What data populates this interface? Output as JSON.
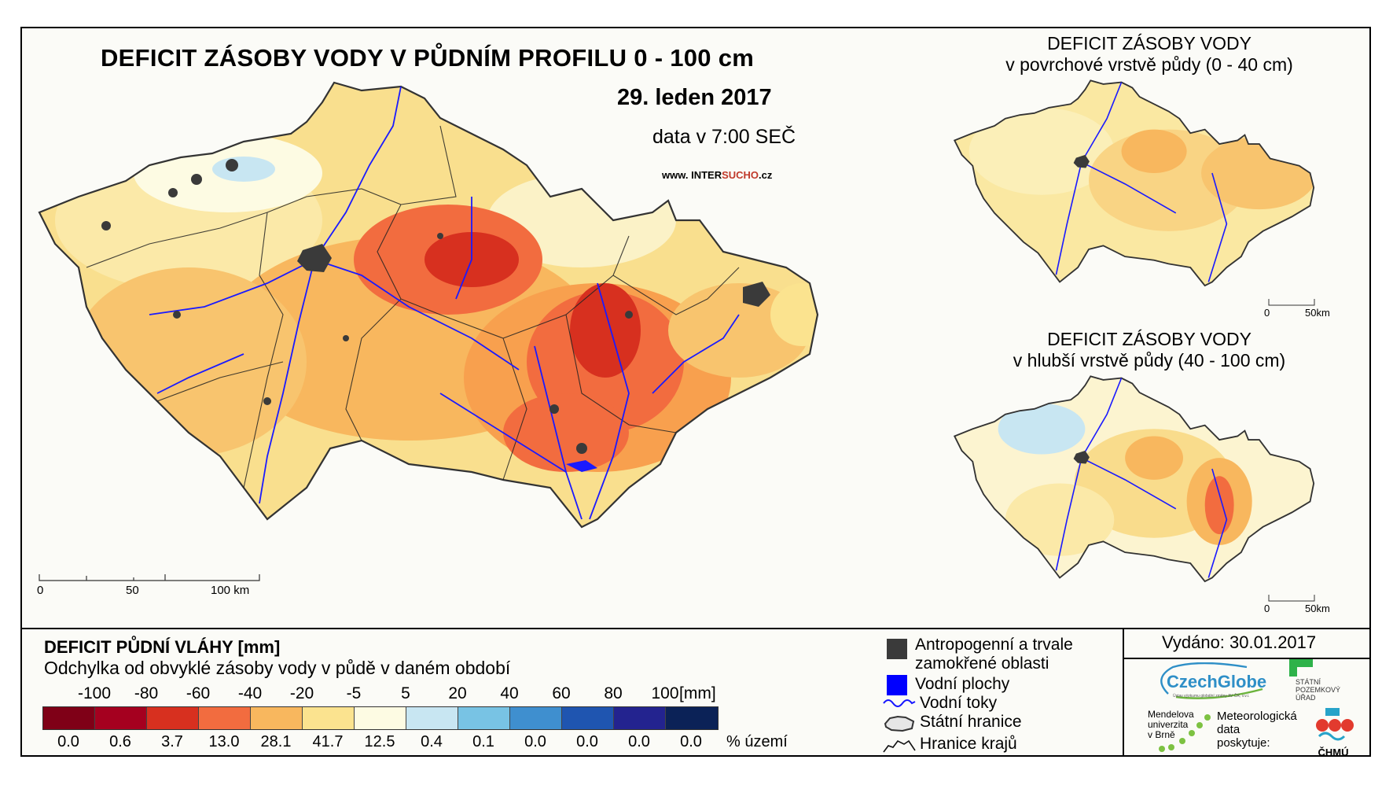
{
  "main_map": {
    "title": "DEFICIT ZÁSOBY VODY V PŮDNÍM PROFILU 0 - 100 cm",
    "date": "29. leden 2017",
    "time": "data v 7:00 SEČ",
    "website_prefix": "www. INTER",
    "website_highlight": "SUCHO",
    "website_suffix": ".cz",
    "scalebar": {
      "labels": [
        "0",
        "50",
        "100 km"
      ]
    }
  },
  "inset_top": {
    "title_line1": "DEFICIT ZÁSOBY VODY",
    "title_line2": "v povrchové vrstvě půdy (0 - 40 cm)",
    "scalebar": {
      "labels": [
        "0",
        "50km"
      ]
    }
  },
  "inset_bottom": {
    "title_line1": "DEFICIT ZÁSOBY VODY",
    "title_line2": "v hlubší vrstvě půdy (40 - 100 cm)",
    "scalebar": {
      "labels": [
        "0",
        "50km"
      ]
    }
  },
  "legend": {
    "title": "DEFICIT PŮDNÍ VLÁHY [mm]",
    "subtitle": "Odchylka od obvyklé zásoby vody v půdě v daném období",
    "ticks": [
      "-100",
      "-80",
      "-60",
      "-40",
      "-20",
      "-5",
      "5",
      "20",
      "40",
      "60",
      "80",
      "100"
    ],
    "unit": "[mm]",
    "classes": [
      {
        "color": "#7f0017",
        "percent": "0.0"
      },
      {
        "color": "#a5001f",
        "percent": "0.6"
      },
      {
        "color": "#d7301f",
        "percent": "3.7"
      },
      {
        "color": "#f26c3f",
        "percent": "13.0"
      },
      {
        "color": "#f8b75e",
        "percent": "28.1"
      },
      {
        "color": "#fbe38f",
        "percent": "41.7"
      },
      {
        "color": "#fdfbe3",
        "percent": "12.5"
      },
      {
        "color": "#c8e6f2",
        "percent": "0.4"
      },
      {
        "color": "#78c3e4",
        "percent": "0.1"
      },
      {
        "color": "#3f8fcf",
        "percent": "0.0"
      },
      {
        "color": "#1f55b0",
        "percent": "0.0"
      },
      {
        "color": "#23238f",
        "percent": "0.0"
      },
      {
        "color": "#0b2257",
        "percent": "0.0"
      }
    ],
    "percent_unit": "% území"
  },
  "symbols": {
    "anthropogenic": {
      "line1": "Antropogenní a trvale",
      "line2": "zamokřené oblasti",
      "color": "#3a3a3a"
    },
    "water_bodies": {
      "label": "Vodní plochy",
      "color": "#0000ff"
    },
    "rivers": {
      "label": "Vodní toky",
      "color": "#1515ff"
    },
    "state_border": {
      "label": "Státní hranice"
    },
    "region_border": {
      "label": "Hranice krajů"
    }
  },
  "issued": "Vydáno: 30.01.2017",
  "logos": {
    "czechglobe": "CzechGlobe",
    "czechglobe_sub": "Ústav výzkumu globální změny AV ČR, v.v.i.",
    "spu_line1": "STÁTNÍ",
    "spu_line2": "POZEMKOVÝ",
    "spu_line3": "ÚŘAD",
    "mendel_line1": "Mendelova",
    "mendel_line2": "univerzita",
    "mendel_line3": "v Brně",
    "meteo_line1": "Meteorologická",
    "meteo_line2": "data",
    "meteo_line3": "poskytuje:",
    "chmu": "ČHMÚ"
  }
}
